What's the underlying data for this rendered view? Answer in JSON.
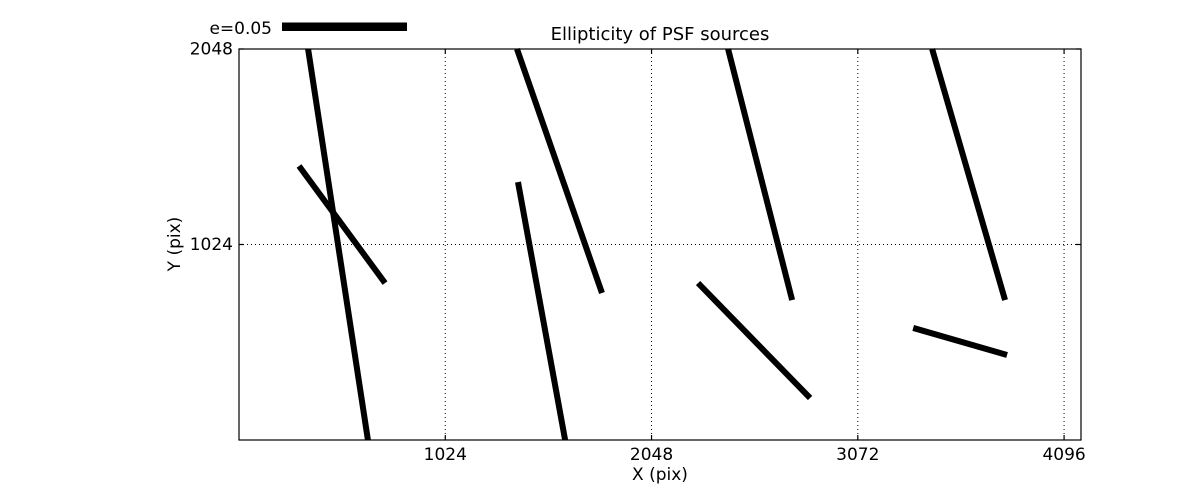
{
  "figure": {
    "background": "#ffffff",
    "foreground": "#000000"
  },
  "chart_data": {
    "type": "line",
    "subtype": "psf-ellipticity-whisker-segments",
    "title": "Ellipticity of PSF sources",
    "xlabel": "X (pix)",
    "ylabel": "Y (pix)",
    "xlim": [
      0,
      4180
    ],
    "ylim": [
      0,
      2048
    ],
    "x_ticks": [
      1024,
      2048,
      3072,
      4096
    ],
    "y_ticks": [
      1024,
      2048
    ],
    "grid": "dotted",
    "grid_color": "#000000",
    "series_color": "#000000",
    "line_width": 6,
    "legend": {
      "label": "e=0.05",
      "position": "upper-left-above-axes",
      "bar_color": "#000000"
    },
    "segments": [
      {
        "x1": 343,
        "y1": 2048,
        "x2": 640,
        "y2": 0
      },
      {
        "x1": 298,
        "y1": 1435,
        "x2": 725,
        "y2": 822
      },
      {
        "x1": 1380,
        "y1": 2048,
        "x2": 1802,
        "y2": 770
      },
      {
        "x1": 1385,
        "y1": 1351,
        "x2": 1619,
        "y2": 0
      },
      {
        "x1": 2428,
        "y1": 2048,
        "x2": 2746,
        "y2": 733
      },
      {
        "x1": 2279,
        "y1": 822,
        "x2": 2835,
        "y2": 220
      },
      {
        "x1": 3441,
        "y1": 2048,
        "x2": 3803,
        "y2": 733
      },
      {
        "x1": 3347,
        "y1": 587,
        "x2": 3813,
        "y2": 445
      }
    ]
  }
}
